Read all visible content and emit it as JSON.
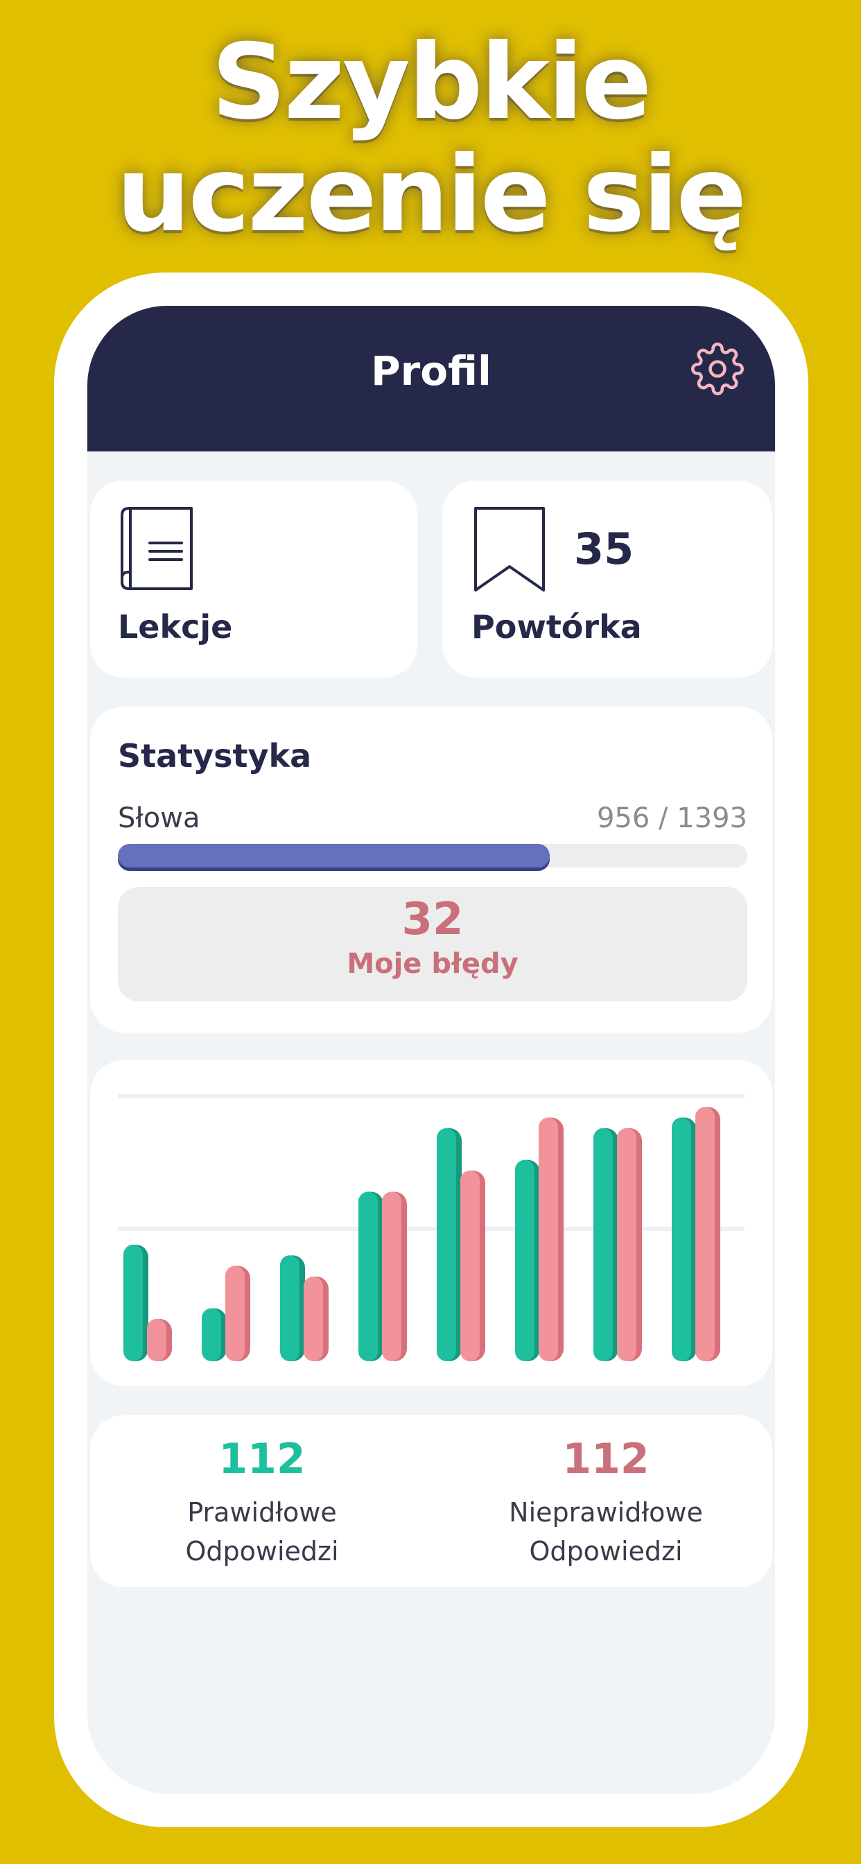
{
  "headline": {
    "line1": "Szybkie",
    "line2": "uczenie się"
  },
  "header": {
    "title": "Profil",
    "settings_icon": "gear-icon"
  },
  "colors": {
    "background": "#E0BE00",
    "header": "#252848",
    "correct": "#1DBF9C",
    "incorrect": "#F2929A",
    "error_text": "#C9707A",
    "progress": "#6570BE"
  },
  "tiles": {
    "lessons": {
      "label": "Lekcje",
      "icon": "book-icon"
    },
    "review": {
      "label": "Powtórka",
      "count": "35",
      "icon": "bookmark-icon"
    }
  },
  "stats": {
    "title": "Statystyka",
    "words_label": "Słowa",
    "words_value": "956 / 1393",
    "words_learned": 956,
    "words_total": 1393,
    "errors_count": "32",
    "errors_label": "Moje błędy"
  },
  "chart_data": {
    "type": "bar",
    "categories": [
      "",
      "",
      "",
      "",
      "",
      "",
      "",
      ""
    ],
    "ylim": [
      0,
      100
    ],
    "grid": true,
    "series": [
      {
        "color": "#1DBF9C",
        "values": [
          44,
          20,
          40,
          64,
          88,
          76,
          88,
          92
        ]
      },
      {
        "color": "#F2929A",
        "values": [
          16,
          36,
          32,
          64,
          72,
          92,
          88,
          96
        ]
      }
    ]
  },
  "summary": {
    "correct": {
      "count": "112",
      "line1": "Prawidłowe",
      "line2": "Odpowiedzi"
    },
    "incorrect": {
      "count": "112",
      "line1": "Nieprawidłowe",
      "line2": "Odpowiedzi"
    }
  }
}
